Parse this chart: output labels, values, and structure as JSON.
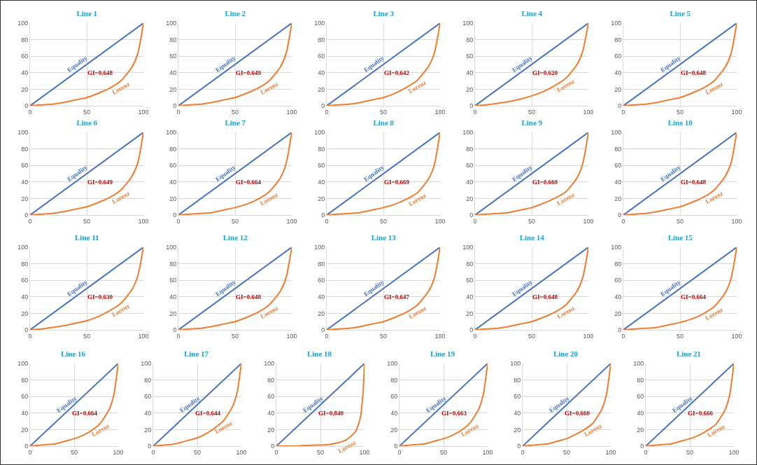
{
  "chart_data": [
    {
      "type": "line",
      "title": "Line 1",
      "annotations": [
        "GI=0.648"
      ],
      "xlim": [
        0,
        100
      ],
      "ylim": [
        0,
        100
      ],
      "xticks": [
        0,
        50,
        100
      ],
      "yticks": [
        0,
        20,
        40,
        60,
        80,
        100
      ],
      "grid": true,
      "legend": false,
      "series": [
        {
          "name": "Equality",
          "color": "#4472c4",
          "x": [
            0,
            100
          ],
          "values": [
            0,
            100
          ]
        },
        {
          "name": "Lorenz",
          "color": "#ed7d31",
          "x": [
            0,
            10,
            20,
            30,
            40,
            50,
            60,
            70,
            80,
            90,
            95,
            100
          ],
          "values": [
            0,
            1,
            2,
            4,
            7,
            10,
            15,
            21,
            30,
            47,
            63,
            100
          ]
        }
      ]
    },
    {
      "type": "line",
      "title": "Line 2",
      "annotations": [
        "GI=0.649"
      ],
      "xlim": [
        0,
        100
      ],
      "ylim": [
        0,
        100
      ],
      "xticks": [
        0,
        50,
        100
      ],
      "yticks": [
        0,
        20,
        40,
        60,
        80,
        100
      ],
      "grid": true,
      "legend": false,
      "series": [
        {
          "name": "Equality",
          "color": "#4472c4",
          "x": [
            0,
            100
          ],
          "values": [
            0,
            100
          ]
        },
        {
          "name": "Lorenz",
          "color": "#ed7d31",
          "x": [
            0,
            10,
            20,
            30,
            40,
            50,
            60,
            70,
            80,
            90,
            95,
            100
          ],
          "values": [
            0,
            1,
            2,
            4,
            7,
            10,
            15,
            21,
            30,
            47,
            63,
            100
          ]
        }
      ]
    },
    {
      "type": "line",
      "title": "Line 3",
      "annotations": [
        "GI=0.642"
      ],
      "xlim": [
        0,
        100
      ],
      "ylim": [
        0,
        100
      ],
      "xticks": [
        0,
        50,
        100
      ],
      "yticks": [
        0,
        20,
        40,
        60,
        80,
        100
      ],
      "grid": true,
      "legend": false,
      "series": [
        {
          "name": "Equality",
          "color": "#4472c4",
          "x": [
            0,
            100
          ],
          "values": [
            0,
            100
          ]
        },
        {
          "name": "Lorenz",
          "color": "#ed7d31",
          "x": [
            0,
            10,
            20,
            30,
            40,
            50,
            60,
            70,
            80,
            90,
            95,
            100
          ],
          "values": [
            0,
            1,
            2,
            4,
            7,
            10,
            15,
            22,
            31,
            48,
            64,
            100
          ]
        }
      ]
    },
    {
      "type": "line",
      "title": "Line 4",
      "annotations": [
        "GI=0.620"
      ],
      "xlim": [
        0,
        100
      ],
      "ylim": [
        0,
        100
      ],
      "xticks": [
        0,
        50,
        100
      ],
      "yticks": [
        0,
        20,
        40,
        60,
        80,
        100
      ],
      "grid": true,
      "legend": false,
      "series": [
        {
          "name": "Equality",
          "color": "#4472c4",
          "x": [
            0,
            100
          ],
          "values": [
            0,
            100
          ]
        },
        {
          "name": "Lorenz",
          "color": "#ed7d31",
          "x": [
            0,
            10,
            20,
            30,
            40,
            50,
            60,
            70,
            80,
            90,
            95,
            100
          ],
          "values": [
            0,
            1,
            3,
            5,
            8,
            12,
            17,
            24,
            33,
            50,
            66,
            100
          ]
        }
      ]
    },
    {
      "type": "line",
      "title": "Line 5",
      "annotations": [
        "GI=0.648"
      ],
      "xlim": [
        0,
        100
      ],
      "ylim": [
        0,
        100
      ],
      "xticks": [
        0,
        50,
        100
      ],
      "yticks": [
        0,
        20,
        40,
        60,
        80,
        100
      ],
      "grid": true,
      "legend": false,
      "series": [
        {
          "name": "Equality",
          "color": "#4472c4",
          "x": [
            0,
            100
          ],
          "values": [
            0,
            100
          ]
        },
        {
          "name": "Lorenz",
          "color": "#ed7d31",
          "x": [
            0,
            10,
            20,
            30,
            40,
            50,
            60,
            70,
            80,
            90,
            95,
            100
          ],
          "values": [
            0,
            1,
            2,
            4,
            7,
            10,
            15,
            21,
            30,
            47,
            63,
            100
          ]
        }
      ]
    },
    {
      "type": "line",
      "title": "Line 6",
      "annotations": [
        "GI=0.649"
      ],
      "xlim": [
        0,
        100
      ],
      "ylim": [
        0,
        100
      ],
      "xticks": [
        0,
        50,
        100
      ],
      "yticks": [
        0,
        20,
        40,
        60,
        80,
        100
      ],
      "grid": true,
      "legend": false,
      "series": [
        {
          "name": "Equality",
          "color": "#4472c4",
          "x": [
            0,
            100
          ],
          "values": [
            0,
            100
          ]
        },
        {
          "name": "Lorenz",
          "color": "#ed7d31",
          "x": [
            0,
            10,
            20,
            30,
            40,
            50,
            60,
            70,
            80,
            90,
            95,
            100
          ],
          "values": [
            0,
            1,
            2,
            4,
            7,
            10,
            15,
            21,
            30,
            47,
            63,
            100
          ]
        }
      ]
    },
    {
      "type": "line",
      "title": "Line 7",
      "annotations": [
        "GI=0.664"
      ],
      "xlim": [
        0,
        100
      ],
      "ylim": [
        0,
        100
      ],
      "xticks": [
        0,
        50,
        100
      ],
      "yticks": [
        0,
        20,
        40,
        60,
        80,
        100
      ],
      "grid": true,
      "legend": false,
      "series": [
        {
          "name": "Equality",
          "color": "#4472c4",
          "x": [
            0,
            100
          ],
          "values": [
            0,
            100
          ]
        },
        {
          "name": "Lorenz",
          "color": "#ed7d31",
          "x": [
            0,
            10,
            20,
            30,
            40,
            50,
            60,
            70,
            80,
            90,
            95,
            100
          ],
          "values": [
            0,
            1,
            2,
            3,
            6,
            9,
            13,
            19,
            28,
            45,
            62,
            100
          ]
        }
      ]
    },
    {
      "type": "line",
      "title": "Line 8",
      "annotations": [
        "GI=0.669"
      ],
      "xlim": [
        0,
        100
      ],
      "ylim": [
        0,
        100
      ],
      "xticks": [
        0,
        50,
        100
      ],
      "yticks": [
        0,
        20,
        40,
        60,
        80,
        100
      ],
      "grid": true,
      "legend": false,
      "series": [
        {
          "name": "Equality",
          "color": "#4472c4",
          "x": [
            0,
            100
          ],
          "values": [
            0,
            100
          ]
        },
        {
          "name": "Lorenz",
          "color": "#ed7d31",
          "x": [
            0,
            10,
            20,
            30,
            40,
            50,
            60,
            70,
            80,
            90,
            95,
            100
          ],
          "values": [
            0,
            1,
            2,
            3,
            6,
            9,
            13,
            19,
            27,
            44,
            61,
            100
          ]
        }
      ]
    },
    {
      "type": "line",
      "title": "Line 9",
      "annotations": [
        "GI=0.660"
      ],
      "xlim": [
        0,
        100
      ],
      "ylim": [
        0,
        100
      ],
      "xticks": [
        0,
        50,
        100
      ],
      "yticks": [
        0,
        20,
        40,
        60,
        80,
        100
      ],
      "grid": true,
      "legend": false,
      "series": [
        {
          "name": "Equality",
          "color": "#4472c4",
          "x": [
            0,
            100
          ],
          "values": [
            0,
            100
          ]
        },
        {
          "name": "Lorenz",
          "color": "#ed7d31",
          "x": [
            0,
            10,
            20,
            30,
            40,
            50,
            60,
            70,
            80,
            90,
            95,
            100
          ],
          "values": [
            0,
            1,
            2,
            3,
            6,
            9,
            14,
            20,
            28,
            45,
            62,
            100
          ]
        }
      ]
    },
    {
      "type": "line",
      "title": "Line 10",
      "annotations": [
        "GI=0.648"
      ],
      "xlim": [
        0,
        100
      ],
      "ylim": [
        0,
        100
      ],
      "xticks": [
        0,
        50,
        100
      ],
      "yticks": [
        0,
        20,
        40,
        60,
        80,
        100
      ],
      "grid": true,
      "legend": false,
      "series": [
        {
          "name": "Equality",
          "color": "#4472c4",
          "x": [
            0,
            100
          ],
          "values": [
            0,
            100
          ]
        },
        {
          "name": "Lorenz",
          "color": "#ed7d31",
          "x": [
            0,
            10,
            20,
            30,
            40,
            50,
            60,
            70,
            80,
            90,
            95,
            100
          ],
          "values": [
            0,
            1,
            2,
            4,
            7,
            10,
            15,
            21,
            30,
            47,
            63,
            100
          ]
        }
      ]
    },
    {
      "type": "line",
      "title": "Line 11",
      "annotations": [
        "GI=0.630"
      ],
      "xlim": [
        0,
        100
      ],
      "ylim": [
        0,
        100
      ],
      "xticks": [
        0,
        50,
        100
      ],
      "yticks": [
        0,
        20,
        40,
        60,
        80,
        100
      ],
      "grid": true,
      "legend": false,
      "series": [
        {
          "name": "Equality",
          "color": "#4472c4",
          "x": [
            0,
            100
          ],
          "values": [
            0,
            100
          ]
        },
        {
          "name": "Lorenz",
          "color": "#ed7d31",
          "x": [
            0,
            10,
            20,
            30,
            40,
            50,
            60,
            70,
            80,
            90,
            95,
            100
          ],
          "values": [
            0,
            1,
            3,
            5,
            8,
            11,
            16,
            23,
            32,
            49,
            65,
            100
          ]
        }
      ]
    },
    {
      "type": "line",
      "title": "Line 12",
      "annotations": [
        "GI=0.648"
      ],
      "xlim": [
        0,
        100
      ],
      "ylim": [
        0,
        100
      ],
      "xticks": [
        0,
        50,
        100
      ],
      "yticks": [
        0,
        20,
        40,
        60,
        80,
        100
      ],
      "grid": true,
      "legend": false,
      "series": [
        {
          "name": "Equality",
          "color": "#4472c4",
          "x": [
            0,
            100
          ],
          "values": [
            0,
            100
          ]
        },
        {
          "name": "Lorenz",
          "color": "#ed7d31",
          "x": [
            0,
            10,
            20,
            30,
            40,
            50,
            60,
            70,
            80,
            90,
            95,
            100
          ],
          "values": [
            0,
            1,
            2,
            4,
            7,
            10,
            15,
            21,
            30,
            47,
            63,
            100
          ]
        }
      ]
    },
    {
      "type": "line",
      "title": "Line 13",
      "annotations": [
        "GI=0.647"
      ],
      "xlim": [
        0,
        100
      ],
      "ylim": [
        0,
        100
      ],
      "xticks": [
        0,
        50,
        100
      ],
      "yticks": [
        0,
        20,
        40,
        60,
        80,
        100
      ],
      "grid": true,
      "legend": false,
      "series": [
        {
          "name": "Equality",
          "color": "#4472c4",
          "x": [
            0,
            100
          ],
          "values": [
            0,
            100
          ]
        },
        {
          "name": "Lorenz",
          "color": "#ed7d31",
          "x": [
            0,
            10,
            20,
            30,
            40,
            50,
            60,
            70,
            80,
            90,
            95,
            100
          ],
          "values": [
            0,
            1,
            2,
            4,
            7,
            10,
            15,
            21,
            30,
            47,
            63,
            100
          ]
        }
      ]
    },
    {
      "type": "line",
      "title": "Line 14",
      "annotations": [
        "GI=0.648"
      ],
      "xlim": [
        0,
        100
      ],
      "ylim": [
        0,
        100
      ],
      "xticks": [
        0,
        50,
        100
      ],
      "yticks": [
        0,
        20,
        40,
        60,
        80,
        100
      ],
      "grid": true,
      "legend": false,
      "series": [
        {
          "name": "Equality",
          "color": "#4472c4",
          "x": [
            0,
            100
          ],
          "values": [
            0,
            100
          ]
        },
        {
          "name": "Lorenz",
          "color": "#ed7d31",
          "x": [
            0,
            10,
            20,
            30,
            40,
            50,
            60,
            70,
            80,
            90,
            95,
            100
          ],
          "values": [
            0,
            1,
            2,
            4,
            7,
            10,
            15,
            21,
            30,
            47,
            63,
            100
          ]
        }
      ]
    },
    {
      "type": "line",
      "title": "Line 15",
      "annotations": [
        "GI=0.664"
      ],
      "xlim": [
        0,
        100
      ],
      "ylim": [
        0,
        100
      ],
      "xticks": [
        0,
        50,
        100
      ],
      "yticks": [
        0,
        20,
        40,
        60,
        80,
        100
      ],
      "grid": true,
      "legend": false,
      "series": [
        {
          "name": "Equality",
          "color": "#4472c4",
          "x": [
            0,
            100
          ],
          "values": [
            0,
            100
          ]
        },
        {
          "name": "Lorenz",
          "color": "#ed7d31",
          "x": [
            0,
            10,
            20,
            30,
            40,
            50,
            60,
            70,
            80,
            90,
            95,
            100
          ],
          "values": [
            0,
            1,
            2,
            3,
            6,
            9,
            13,
            19,
            28,
            45,
            62,
            100
          ]
        }
      ]
    },
    {
      "type": "line",
      "title": "Line 16",
      "annotations": [
        "GI=0.664"
      ],
      "xlim": [
        0,
        100
      ],
      "ylim": [
        0,
        100
      ],
      "xticks": [
        0,
        50,
        100
      ],
      "yticks": [
        0,
        20,
        40,
        60,
        80,
        100
      ],
      "grid": true,
      "legend": false,
      "series": [
        {
          "name": "Equality",
          "color": "#4472c4",
          "x": [
            0,
            100
          ],
          "values": [
            0,
            100
          ]
        },
        {
          "name": "Lorenz",
          "color": "#ed7d31",
          "x": [
            0,
            10,
            20,
            30,
            40,
            50,
            60,
            70,
            80,
            90,
            95,
            100
          ],
          "values": [
            0,
            1,
            2,
            3,
            6,
            9,
            13,
            19,
            28,
            45,
            62,
            100
          ]
        }
      ]
    },
    {
      "type": "line",
      "title": "Line 17",
      "annotations": [
        "GI=0.644"
      ],
      "xlim": [
        0,
        100
      ],
      "ylim": [
        0,
        100
      ],
      "xticks": [
        0,
        50,
        100
      ],
      "yticks": [
        0,
        20,
        40,
        60,
        80,
        100
      ],
      "grid": true,
      "legend": false,
      "series": [
        {
          "name": "Equality",
          "color": "#4472c4",
          "x": [
            0,
            100
          ],
          "values": [
            0,
            100
          ]
        },
        {
          "name": "Lorenz",
          "color": "#ed7d31",
          "x": [
            0,
            10,
            20,
            30,
            40,
            50,
            60,
            70,
            80,
            90,
            95,
            100
          ],
          "values": [
            0,
            1,
            2,
            4,
            7,
            10,
            15,
            22,
            31,
            48,
            64,
            100
          ]
        }
      ]
    },
    {
      "type": "line",
      "title": "Line 18",
      "annotations": [
        "GI=0.840"
      ],
      "xlim": [
        0,
        100
      ],
      "ylim": [
        0,
        100
      ],
      "xticks": [
        0,
        50,
        100
      ],
      "yticks": [
        0,
        20,
        40,
        60,
        80,
        100
      ],
      "grid": true,
      "legend": false,
      "series": [
        {
          "name": "Equality",
          "color": "#4472c4",
          "x": [
            0,
            100
          ],
          "values": [
            0,
            100
          ]
        },
        {
          "name": "Lorenz",
          "color": "#ed7d31",
          "x": [
            0,
            20,
            40,
            60,
            70,
            80,
            90,
            95,
            98,
            100
          ],
          "values": [
            0,
            0,
            1,
            2,
            4,
            8,
            18,
            33,
            60,
            100
          ]
        }
      ]
    },
    {
      "type": "line",
      "title": "Line 19",
      "annotations": [
        "GI=0.663"
      ],
      "xlim": [
        0,
        100
      ],
      "ylim": [
        0,
        100
      ],
      "xticks": [
        0,
        50,
        100
      ],
      "yticks": [
        0,
        20,
        40,
        60,
        80,
        100
      ],
      "grid": true,
      "legend": false,
      "series": [
        {
          "name": "Equality",
          "color": "#4472c4",
          "x": [
            0,
            100
          ],
          "values": [
            0,
            100
          ]
        },
        {
          "name": "Lorenz",
          "color": "#ed7d31",
          "x": [
            0,
            10,
            20,
            30,
            40,
            50,
            60,
            70,
            80,
            90,
            95,
            100
          ],
          "values": [
            0,
            1,
            2,
            3,
            6,
            9,
            13,
            19,
            28,
            45,
            62,
            100
          ]
        }
      ]
    },
    {
      "type": "line",
      "title": "Line 20",
      "annotations": [
        "GI=0.660"
      ],
      "xlim": [
        0,
        100
      ],
      "ylim": [
        0,
        100
      ],
      "xticks": [
        0,
        50,
        100
      ],
      "yticks": [
        0,
        20,
        40,
        60,
        80,
        100
      ],
      "grid": true,
      "legend": false,
      "series": [
        {
          "name": "Equality",
          "color": "#4472c4",
          "x": [
            0,
            100
          ],
          "values": [
            0,
            100
          ]
        },
        {
          "name": "Lorenz",
          "color": "#ed7d31",
          "x": [
            0,
            10,
            20,
            30,
            40,
            50,
            60,
            70,
            80,
            90,
            95,
            100
          ],
          "values": [
            0,
            1,
            2,
            3,
            6,
            9,
            14,
            20,
            28,
            45,
            62,
            100
          ]
        }
      ]
    },
    {
      "type": "line",
      "title": "Line 21",
      "annotations": [
        "GI=0.666"
      ],
      "xlim": [
        0,
        100
      ],
      "ylim": [
        0,
        100
      ],
      "xticks": [
        0,
        50,
        100
      ],
      "yticks": [
        0,
        20,
        40,
        60,
        80,
        100
      ],
      "grid": true,
      "legend": false,
      "series": [
        {
          "name": "Equality",
          "color": "#4472c4",
          "x": [
            0,
            100
          ],
          "values": [
            0,
            100
          ]
        },
        {
          "name": "Lorenz",
          "color": "#ed7d31",
          "x": [
            0,
            10,
            20,
            30,
            40,
            50,
            60,
            70,
            80,
            90,
            95,
            100
          ],
          "values": [
            0,
            1,
            2,
            3,
            6,
            9,
            13,
            19,
            27,
            44,
            61,
            100
          ]
        }
      ]
    }
  ]
}
